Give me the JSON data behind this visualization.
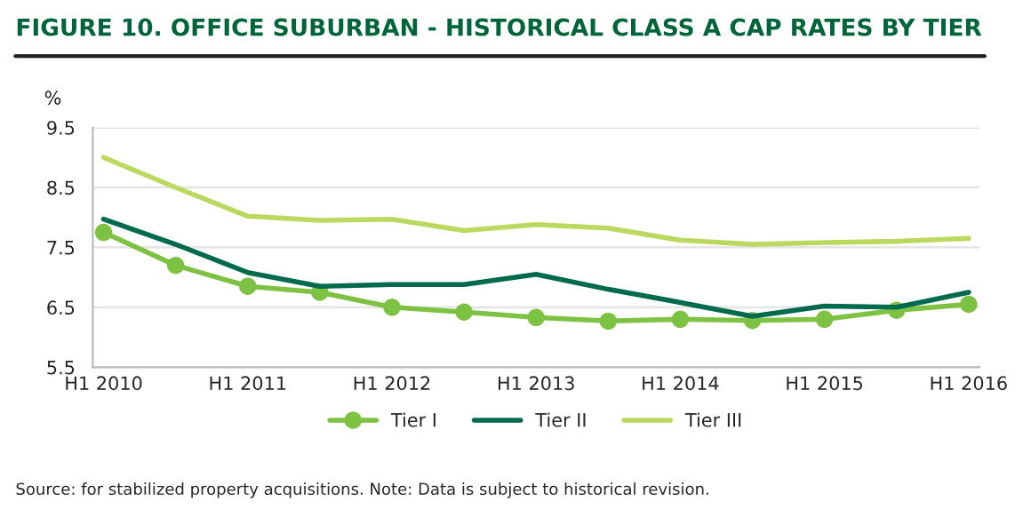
{
  "chart_data": {
    "type": "line",
    "title": "FIGURE 10. OFFICE SUBURBAN - HISTORICAL CLASS A CAP RATES BY TIER",
    "ylabel": "%",
    "categories": [
      "H1 2010",
      null,
      "H1 2011",
      null,
      "H1 2012",
      null,
      "H1 2013",
      null,
      "H1 2014",
      null,
      "H1 2015",
      null,
      "H1 2016"
    ],
    "series": [
      {
        "name": "Tier I",
        "color": "#7dc242",
        "marker": "circle",
        "values": [
          7.75,
          7.2,
          6.85,
          6.75,
          6.5,
          6.42,
          6.33,
          6.27,
          6.3,
          6.28,
          6.3,
          6.45,
          6.55
        ]
      },
      {
        "name": "Tier II",
        "color": "#006a4d",
        "values": [
          7.97,
          7.55,
          7.08,
          6.85,
          6.88,
          6.88,
          7.05,
          6.8,
          6.58,
          6.35,
          6.52,
          6.5,
          6.75
        ]
      },
      {
        "name": "Tier III",
        "color": "#bcd85f",
        "values": [
          9.0,
          8.5,
          8.02,
          7.95,
          7.97,
          7.78,
          7.88,
          7.82,
          7.62,
          7.55,
          7.58,
          7.6,
          7.65
        ]
      }
    ],
    "ylim": [
      5.5,
      9.5
    ],
    "yticks": [
      5.5,
      6.5,
      7.5,
      8.5,
      9.5
    ],
    "grid": "y",
    "legend": "bottom",
    "annotations": [
      "Source: for stabilized property acquisitions. Note: Data is subject to historical revision."
    ]
  }
}
